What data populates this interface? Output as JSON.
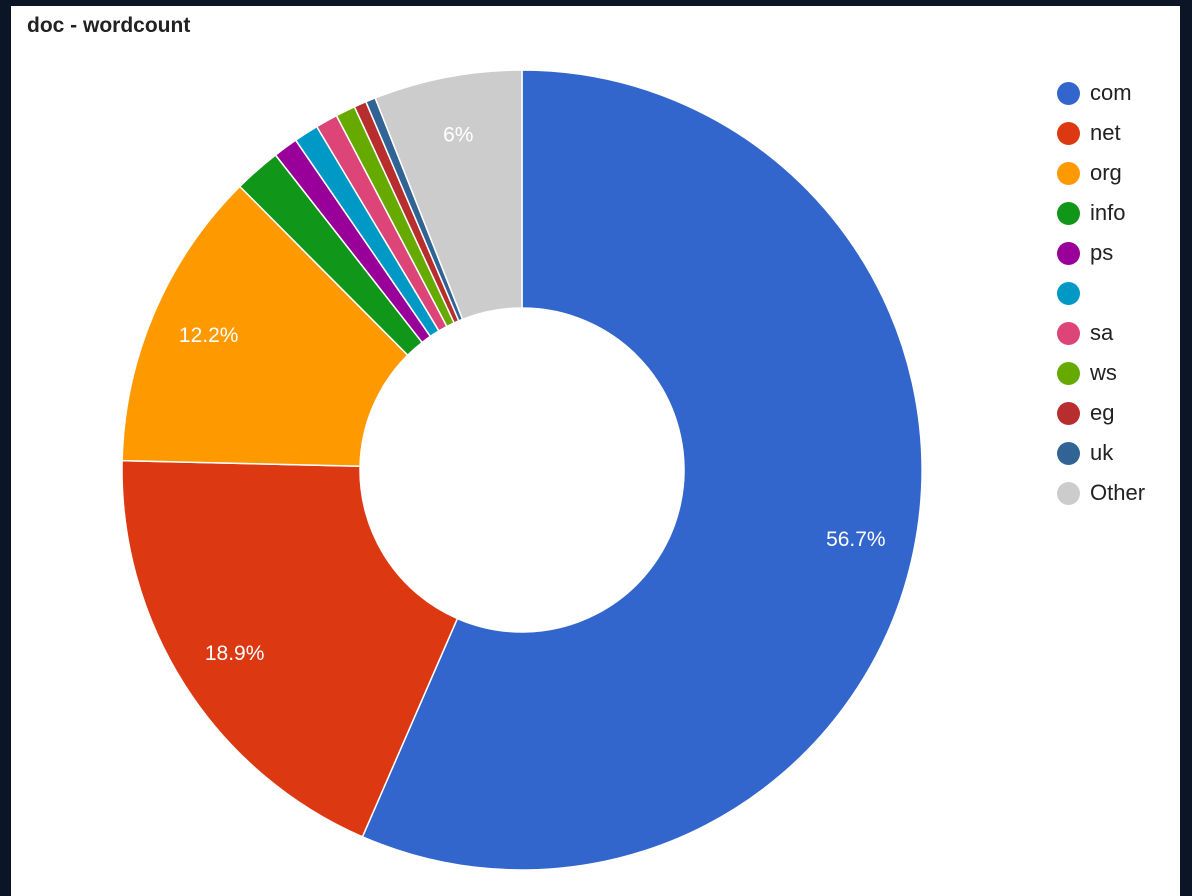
{
  "chart_data": {
    "type": "pie",
    "title": "doc - wordcount",
    "donut": true,
    "legend_position": "right",
    "slices": [
      {
        "name": "com",
        "value": 56.7,
        "label": "56.7%",
        "color": "#3366cc"
      },
      {
        "name": "net",
        "value": 18.9,
        "label": "18.9%",
        "color": "#dc3912"
      },
      {
        "name": "org",
        "value": 12.2,
        "label": "12.2%",
        "color": "#ff9900"
      },
      {
        "name": "info",
        "value": 1.9,
        "label": "",
        "color": "#109618"
      },
      {
        "name": "ps",
        "value": 1.0,
        "label": "",
        "color": "#990099"
      },
      {
        "name": "",
        "value": 1.0,
        "label": "",
        "color": "#0099c6"
      },
      {
        "name": "sa",
        "value": 0.9,
        "label": "",
        "color": "#dd4477"
      },
      {
        "name": "ws",
        "value": 0.8,
        "label": "",
        "color": "#66aa00"
      },
      {
        "name": "eg",
        "value": 0.5,
        "label": "",
        "color": "#b82e2e"
      },
      {
        "name": "uk",
        "value": 0.4,
        "label": "",
        "color": "#316395"
      },
      {
        "name": "Other",
        "value": 6.0,
        "label": "6%",
        "color": "#cccccc"
      }
    ]
  }
}
